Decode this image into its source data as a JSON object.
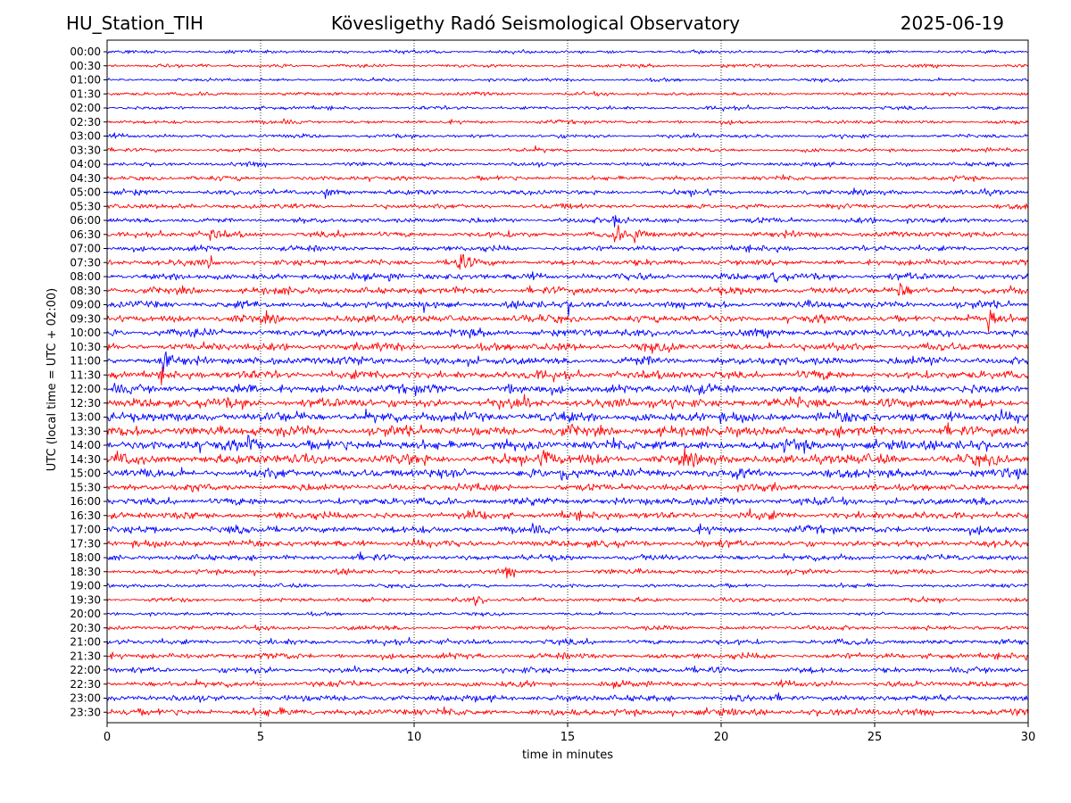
{
  "header": {
    "station": "HU_Station_TIH",
    "observatory": "Kövesligethy Radó Seismological Observatory",
    "date": "2025-06-19"
  },
  "chart_data": {
    "type": "line",
    "plot_kind": "helicorder",
    "xlabel": "time in minutes",
    "ylabel": "UTC (local time = UTC + 02:00)",
    "xlim": [
      0,
      30
    ],
    "x_ticks": [
      0,
      5,
      10,
      15,
      20,
      25,
      30
    ],
    "grid": "vertical dotted lines at 5-minute intervals",
    "trace_colors": [
      "#0000ff",
      "#ff0000"
    ],
    "traces": [
      {
        "label": "00:00",
        "amp": 0.16
      },
      {
        "label": "00:30",
        "amp": 0.16
      },
      {
        "label": "01:00",
        "amp": 0.15
      },
      {
        "label": "01:30",
        "amp": 0.17
      },
      {
        "label": "02:00",
        "amp": 0.17
      },
      {
        "label": "02:30",
        "amp": 0.18
      },
      {
        "label": "03:00",
        "amp": 0.18
      },
      {
        "label": "03:30",
        "amp": 0.18
      },
      {
        "label": "04:00",
        "amp": 0.2
      },
      {
        "label": "04:30",
        "amp": 0.22
      },
      {
        "label": "05:00",
        "amp": 0.24
      },
      {
        "label": "05:30",
        "amp": 0.24
      },
      {
        "label": "06:00",
        "amp": 0.26
      },
      {
        "label": "06:30",
        "amp": 0.28
      },
      {
        "label": "07:00",
        "amp": 0.27
      },
      {
        "label": "07:30",
        "amp": 0.29
      },
      {
        "label": "08:00",
        "amp": 0.32
      },
      {
        "label": "08:30",
        "amp": 0.34
      },
      {
        "label": "09:00",
        "amp": 0.34
      },
      {
        "label": "09:30",
        "amp": 0.36
      },
      {
        "label": "10:00",
        "amp": 0.36
      },
      {
        "label": "10:30",
        "amp": 0.37
      },
      {
        "label": "11:00",
        "amp": 0.4
      },
      {
        "label": "11:30",
        "amp": 0.4
      },
      {
        "label": "12:00",
        "amp": 0.44
      },
      {
        "label": "12:30",
        "amp": 0.46
      },
      {
        "label": "13:00",
        "amp": 0.48
      },
      {
        "label": "13:30",
        "amp": 0.5
      },
      {
        "label": "14:00",
        "amp": 0.5
      },
      {
        "label": "14:30",
        "amp": 0.48
      },
      {
        "label": "15:00",
        "amp": 0.44
      },
      {
        "label": "15:30",
        "amp": 0.34
      },
      {
        "label": "16:00",
        "amp": 0.36
      },
      {
        "label": "16:30",
        "amp": 0.36
      },
      {
        "label": "17:00",
        "amp": 0.36
      },
      {
        "label": "17:30",
        "amp": 0.33
      },
      {
        "label": "18:00",
        "amp": 0.28
      },
      {
        "label": "18:30",
        "amp": 0.24
      },
      {
        "label": "19:00",
        "amp": 0.18
      },
      {
        "label": "19:30",
        "amp": 0.2
      },
      {
        "label": "20:00",
        "amp": 0.16
      },
      {
        "label": "20:30",
        "amp": 0.22
      },
      {
        "label": "21:00",
        "amp": 0.26
      },
      {
        "label": "21:30",
        "amp": 0.28
      },
      {
        "label": "22:00",
        "amp": 0.28
      },
      {
        "label": "22:30",
        "amp": 0.28
      },
      {
        "label": "23:00",
        "amp": 0.3
      },
      {
        "label": "23:30",
        "amp": 0.34
      }
    ],
    "events": [
      {
        "trace": "05:00",
        "minute": 7.1,
        "amp": 0.55
      },
      {
        "trace": "06:00",
        "minute": 16.5,
        "amp": 0.6
      },
      {
        "trace": "06:30",
        "minute": 3.4,
        "amp": 0.7
      },
      {
        "trace": "06:30",
        "minute": 16.5,
        "amp": 1.1
      },
      {
        "trace": "06:30",
        "minute": 17.2,
        "amp": 0.9
      },
      {
        "trace": "07:30",
        "minute": 11.4,
        "amp": 1.6
      },
      {
        "trace": "07:30",
        "minute": 3.3,
        "amp": 0.6
      },
      {
        "trace": "08:00",
        "minute": 9.2,
        "amp": 0.6
      },
      {
        "trace": "08:00",
        "minute": 21.7,
        "amp": 0.6
      },
      {
        "trace": "08:30",
        "minute": 25.8,
        "amp": 1.0
      },
      {
        "trace": "09:00",
        "minute": 15.0,
        "amp": 0.6
      },
      {
        "trace": "09:30",
        "minute": 28.7,
        "amp": 1.1
      },
      {
        "trace": "11:00",
        "minute": 1.8,
        "amp": 0.8
      },
      {
        "trace": "11:30",
        "minute": 1.8,
        "amp": 0.6
      },
      {
        "trace": "13:00",
        "minute": 26.1,
        "amp": 0.8
      },
      {
        "trace": "14:00",
        "minute": 4.6,
        "amp": 0.9
      },
      {
        "trace": "14:30",
        "minute": 14.2,
        "amp": 1.3
      },
      {
        "trace": "15:00",
        "minute": 14.8,
        "amp": 0.6
      },
      {
        "trace": "18:30",
        "minute": 13.0,
        "amp": 0.6
      },
      {
        "trace": "19:30",
        "minute": 12.0,
        "amp": 0.6
      }
    ]
  }
}
